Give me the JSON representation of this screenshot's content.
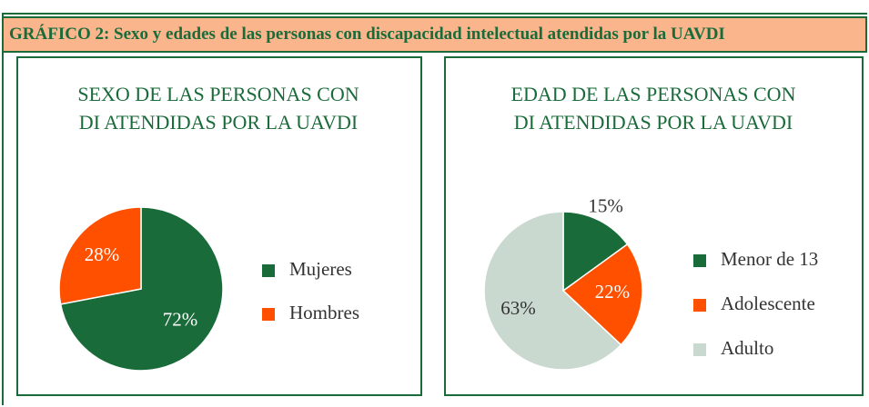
{
  "header": {
    "title": "GRÁFICO 2: Sexo y edades de las personas con discapacidad intelectual atendidas por la UAVDI"
  },
  "chart_data": [
    {
      "type": "pie",
      "title": "SEXO DE LAS PERSONAS CON DI ATENDIDAS POR LA UAVDI",
      "categories": [
        "Mujeres",
        "Hombres"
      ],
      "values": [
        72,
        28
      ],
      "value_labels": [
        "72%",
        "28%"
      ],
      "colors": [
        "#1a6b3a",
        "#ff5000"
      ],
      "legend": "right"
    },
    {
      "type": "pie",
      "title": "EDAD DE LAS PERSONAS CON DI ATENDIDAS POR LA UAVDI",
      "categories": [
        "Menor de 13",
        "Adolescente",
        "Adulto"
      ],
      "values": [
        15,
        22,
        63
      ],
      "value_labels": [
        "15%",
        "22%",
        "63%"
      ],
      "colors": [
        "#1a6b3a",
        "#ff5000",
        "#c9d9cf"
      ],
      "legend": "right"
    }
  ]
}
